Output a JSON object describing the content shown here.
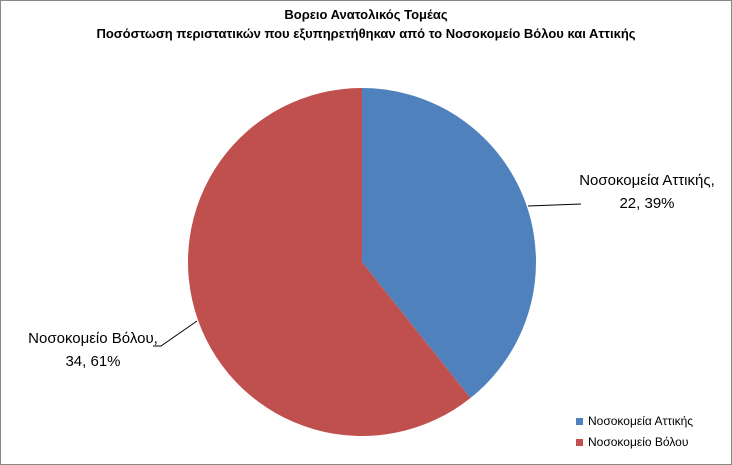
{
  "chart_data": {
    "type": "pie",
    "title": "Βορειο Ανατολικός Τομέας",
    "subtitle": "Ποσόστωση περιστατικών που εξυπηρετήθηκαν από το Νοσοκομείο Βόλου και Αττικής",
    "categories": [
      "Νοσοκομεία Αττικής",
      "Νοσοκομείο Βόλου"
    ],
    "values": [
      22,
      34
    ],
    "value_labels": [
      "Νοσοκομεία Αττικής, 22, 39%",
      "Νοσοκομείο Βόλου, 34, 61%"
    ],
    "colors": [
      "#4f81bd",
      "#c0504d"
    ],
    "legend": "bottom-right"
  }
}
